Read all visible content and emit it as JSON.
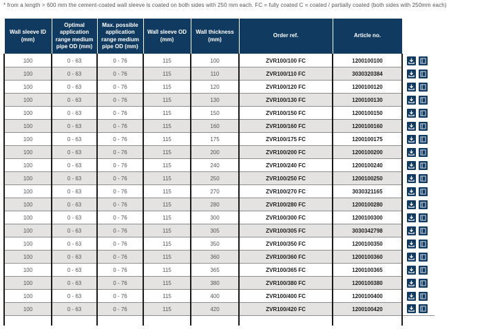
{
  "note": "* from a length > 600 mm the cement-coated wall sleeve is coated on both sides with 250 mm each. FC = fully coated C = coated / partially coated (both sides with 250mm each)",
  "colors": {
    "header_bg": "#113a60",
    "button_bg": "#113a60",
    "row_alt_bg": "#e4e3e1",
    "border_dark": "#191919",
    "border_gray": "#8d8d8d"
  },
  "table": {
    "headers": [
      "Wall sleeve ID (mm)",
      "Optimal application range medium pipe OD (mm)",
      "Max. possible application range medium pipe OD (mm)",
      "Wall sleeve OD (mm)",
      "Wall thickness (mm)",
      "Order ref.",
      "Article no."
    ],
    "actions": [
      {
        "name": "download-button",
        "icon": "download-icon"
      },
      {
        "name": "datasheet-button",
        "icon": "datasheet-icon"
      }
    ],
    "rows": [
      {
        "wall_sleeve_id": "100",
        "optimal_range": "0 - 63",
        "max_range": "0 - 76",
        "wall_sleeve_od": "115",
        "wall_thickness": "100",
        "order_ref": "ZVR100/100 FC",
        "article_no": "1200100100"
      },
      {
        "wall_sleeve_id": "100",
        "optimal_range": "0 - 63",
        "max_range": "0 - 76",
        "wall_sleeve_od": "115",
        "wall_thickness": "110",
        "order_ref": "ZVR100/110 FC",
        "article_no": "3030320384"
      },
      {
        "wall_sleeve_id": "100",
        "optimal_range": "0 - 63",
        "max_range": "0 - 76",
        "wall_sleeve_od": "115",
        "wall_thickness": "120",
        "order_ref": "ZVR100/120 FC",
        "article_no": "1200100120"
      },
      {
        "wall_sleeve_id": "100",
        "optimal_range": "0 - 63",
        "max_range": "0 - 76",
        "wall_sleeve_od": "115",
        "wall_thickness": "130",
        "order_ref": "ZVR100/130 FC",
        "article_no": "1200100130"
      },
      {
        "wall_sleeve_id": "100",
        "optimal_range": "0 - 63",
        "max_range": "0 - 76",
        "wall_sleeve_od": "115",
        "wall_thickness": "150",
        "order_ref": "ZVR100/150 FC",
        "article_no": "1200100150"
      },
      {
        "wall_sleeve_id": "100",
        "optimal_range": "0 - 63",
        "max_range": "0 - 76",
        "wall_sleeve_od": "115",
        "wall_thickness": "160",
        "order_ref": "ZVR100/160 FC",
        "article_no": "1200100160"
      },
      {
        "wall_sleeve_id": "100",
        "optimal_range": "0 - 63",
        "max_range": "0 - 76",
        "wall_sleeve_od": "115",
        "wall_thickness": "175",
        "order_ref": "ZVR100/175 FC",
        "article_no": "1200100175"
      },
      {
        "wall_sleeve_id": "100",
        "optimal_range": "0 - 63",
        "max_range": "0 - 76",
        "wall_sleeve_od": "115",
        "wall_thickness": "200",
        "order_ref": "ZVR100/200 FC",
        "article_no": "1200100200"
      },
      {
        "wall_sleeve_id": "100",
        "optimal_range": "0 - 63",
        "max_range": "0 - 76",
        "wall_sleeve_od": "115",
        "wall_thickness": "240",
        "order_ref": "ZVR100/240 FC",
        "article_no": "1200100240"
      },
      {
        "wall_sleeve_id": "100",
        "optimal_range": "0 - 63",
        "max_range": "0 - 76",
        "wall_sleeve_od": "115",
        "wall_thickness": "250",
        "order_ref": "ZVR100/250 FC",
        "article_no": "1200100250"
      },
      {
        "wall_sleeve_id": "100",
        "optimal_range": "0 - 63",
        "max_range": "0 - 76",
        "wall_sleeve_od": "115",
        "wall_thickness": "270",
        "order_ref": "ZVR100/270 FC",
        "article_no": "3030321165"
      },
      {
        "wall_sleeve_id": "100",
        "optimal_range": "0 - 63",
        "max_range": "0 - 76",
        "wall_sleeve_od": "115",
        "wall_thickness": "280",
        "order_ref": "ZVR100/280 FC",
        "article_no": "1200100280"
      },
      {
        "wall_sleeve_id": "100",
        "optimal_range": "0 - 63",
        "max_range": "0 - 76",
        "wall_sleeve_od": "115",
        "wall_thickness": "300",
        "order_ref": "ZVR100/300 FC",
        "article_no": "1200100300"
      },
      {
        "wall_sleeve_id": "100",
        "optimal_range": "0 - 63",
        "max_range": "0 - 76",
        "wall_sleeve_od": "115",
        "wall_thickness": "305",
        "order_ref": "ZVR100/305 FC",
        "article_no": "3030342798"
      },
      {
        "wall_sleeve_id": "100",
        "optimal_range": "0 - 63",
        "max_range": "0 - 76",
        "wall_sleeve_od": "115",
        "wall_thickness": "350",
        "order_ref": "ZVR100/350 FC",
        "article_no": "1200100350"
      },
      {
        "wall_sleeve_id": "100",
        "optimal_range": "0 - 63",
        "max_range": "0 - 76",
        "wall_sleeve_od": "115",
        "wall_thickness": "360",
        "order_ref": "ZVR100/360 FC",
        "article_no": "1200100360"
      },
      {
        "wall_sleeve_id": "100",
        "optimal_range": "0 - 63",
        "max_range": "0 - 76",
        "wall_sleeve_od": "115",
        "wall_thickness": "365",
        "order_ref": "ZVR100/365 FC",
        "article_no": "1200100365"
      },
      {
        "wall_sleeve_id": "100",
        "optimal_range": "0 - 63",
        "max_range": "0 - 76",
        "wall_sleeve_od": "115",
        "wall_thickness": "380",
        "order_ref": "ZVR100/380 FC",
        "article_no": "1200100380"
      },
      {
        "wall_sleeve_id": "100",
        "optimal_range": "0 - 63",
        "max_range": "0 - 76",
        "wall_sleeve_od": "115",
        "wall_thickness": "400",
        "order_ref": "ZVR100/400 FC",
        "article_no": "1200100400"
      },
      {
        "wall_sleeve_id": "100",
        "optimal_range": "0 - 63",
        "max_range": "0 - 76",
        "wall_sleeve_od": "115",
        "wall_thickness": "420",
        "order_ref": "ZVR100/420 FC",
        "article_no": "1200100420"
      }
    ]
  }
}
